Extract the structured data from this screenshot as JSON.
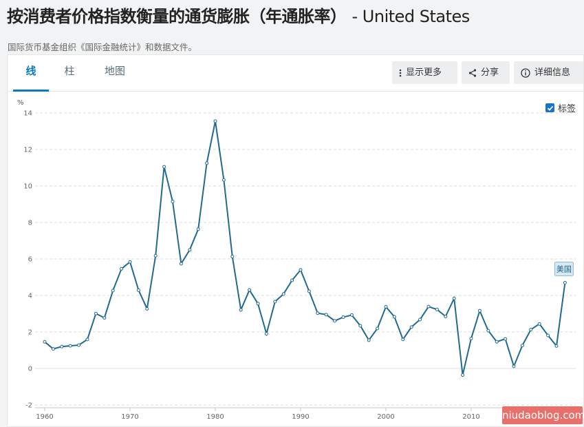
{
  "header": {
    "title": "按消费者价格指数衡量的通货膨胀（年通胀率）",
    "country": "- United States",
    "source": "国际货币基金组织《国际金融统计》和数据文件。"
  },
  "tabs": [
    {
      "label": "线",
      "active": true
    },
    {
      "label": "柱",
      "active": false
    },
    {
      "label": "地图",
      "active": false
    }
  ],
  "toolbar": {
    "more_label": "显示更多",
    "share_label": "分享",
    "details_label": "详细信息"
  },
  "legend": {
    "label": "标签",
    "checked": true
  },
  "watermark": "niudaoblog.com",
  "colors": {
    "line": "#20698f",
    "accent": "#0a7bc0",
    "checkbox": "#1a73c8",
    "label_bg": "#d6e8f3"
  },
  "chart_data": {
    "type": "line",
    "ylabel": "%",
    "xlabel": "",
    "ylim": [
      -2,
      14
    ],
    "yticks": [
      "-2",
      "0",
      "2",
      "4",
      "6",
      "8",
      "10",
      "12",
      "14"
    ],
    "xticks": [
      "1960",
      "1970",
      "1980",
      "1990",
      "2000",
      "2010"
    ],
    "grid": true,
    "series": [
      {
        "name": "美国",
        "x": [
          1960,
          1961,
          1962,
          1963,
          1964,
          1965,
          1966,
          1967,
          1968,
          1969,
          1970,
          1971,
          1972,
          1973,
          1974,
          1975,
          1976,
          1977,
          1978,
          1979,
          1980,
          1981,
          1982,
          1983,
          1984,
          1985,
          1986,
          1987,
          1988,
          1989,
          1990,
          1991,
          1992,
          1993,
          1994,
          1995,
          1996,
          1997,
          1998,
          1999,
          2000,
          2001,
          2002,
          2003,
          2004,
          2005,
          2006,
          2007,
          2008,
          2009,
          2010,
          2011,
          2012,
          2013,
          2014,
          2015,
          2016,
          2017,
          2018,
          2019,
          2020,
          2021
        ],
        "values": [
          1.46,
          1.07,
          1.2,
          1.24,
          1.28,
          1.59,
          3.01,
          2.77,
          4.27,
          5.46,
          5.84,
          4.29,
          3.27,
          6.18,
          11.05,
          9.14,
          5.74,
          6.5,
          7.63,
          11.25,
          13.55,
          10.33,
          6.13,
          3.21,
          4.3,
          3.55,
          1.9,
          3.66,
          4.08,
          4.83,
          5.4,
          4.23,
          3.03,
          2.95,
          2.61,
          2.81,
          2.93,
          2.34,
          1.55,
          2.19,
          3.38,
          2.83,
          1.59,
          2.27,
          2.68,
          3.39,
          3.23,
          2.85,
          3.84,
          -0.36,
          1.64,
          3.16,
          2.07,
          1.46,
          1.62,
          0.12,
          1.26,
          2.13,
          2.44,
          1.81,
          1.23,
          4.7
        ]
      }
    ]
  }
}
